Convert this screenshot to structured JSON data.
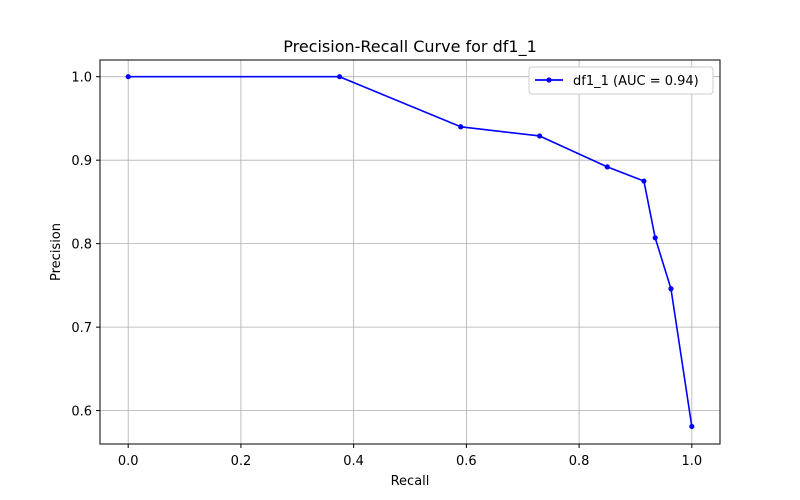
{
  "chart_data": {
    "type": "line",
    "title": "Precision-Recall Curve for df1_1",
    "xlabel": "Recall",
    "ylabel": "Precision",
    "xlim": [
      -0.05,
      1.05
    ],
    "ylim": [
      0.56,
      1.02
    ],
    "xticks": [
      0.0,
      0.2,
      0.4,
      0.6,
      0.8,
      1.0
    ],
    "yticks": [
      0.6,
      0.7,
      0.8,
      0.9,
      1.0
    ],
    "xtick_labels": [
      "0.0",
      "0.2",
      "0.4",
      "0.6",
      "0.8",
      "1.0"
    ],
    "ytick_labels": [
      "0.6",
      "0.7",
      "0.8",
      "0.9",
      "1.0"
    ],
    "grid": true,
    "legend_position": "top-right",
    "series": [
      {
        "name": "df1_1 (AUC = 0.94)",
        "color": "#0000ff",
        "marker": "dot",
        "x": [
          0.0,
          0.375,
          0.59,
          0.73,
          0.85,
          0.915,
          0.935,
          0.963,
          1.0
        ],
        "y": [
          1.0,
          1.0,
          0.94,
          0.929,
          0.892,
          0.875,
          0.807,
          0.746,
          0.581
        ]
      }
    ]
  }
}
